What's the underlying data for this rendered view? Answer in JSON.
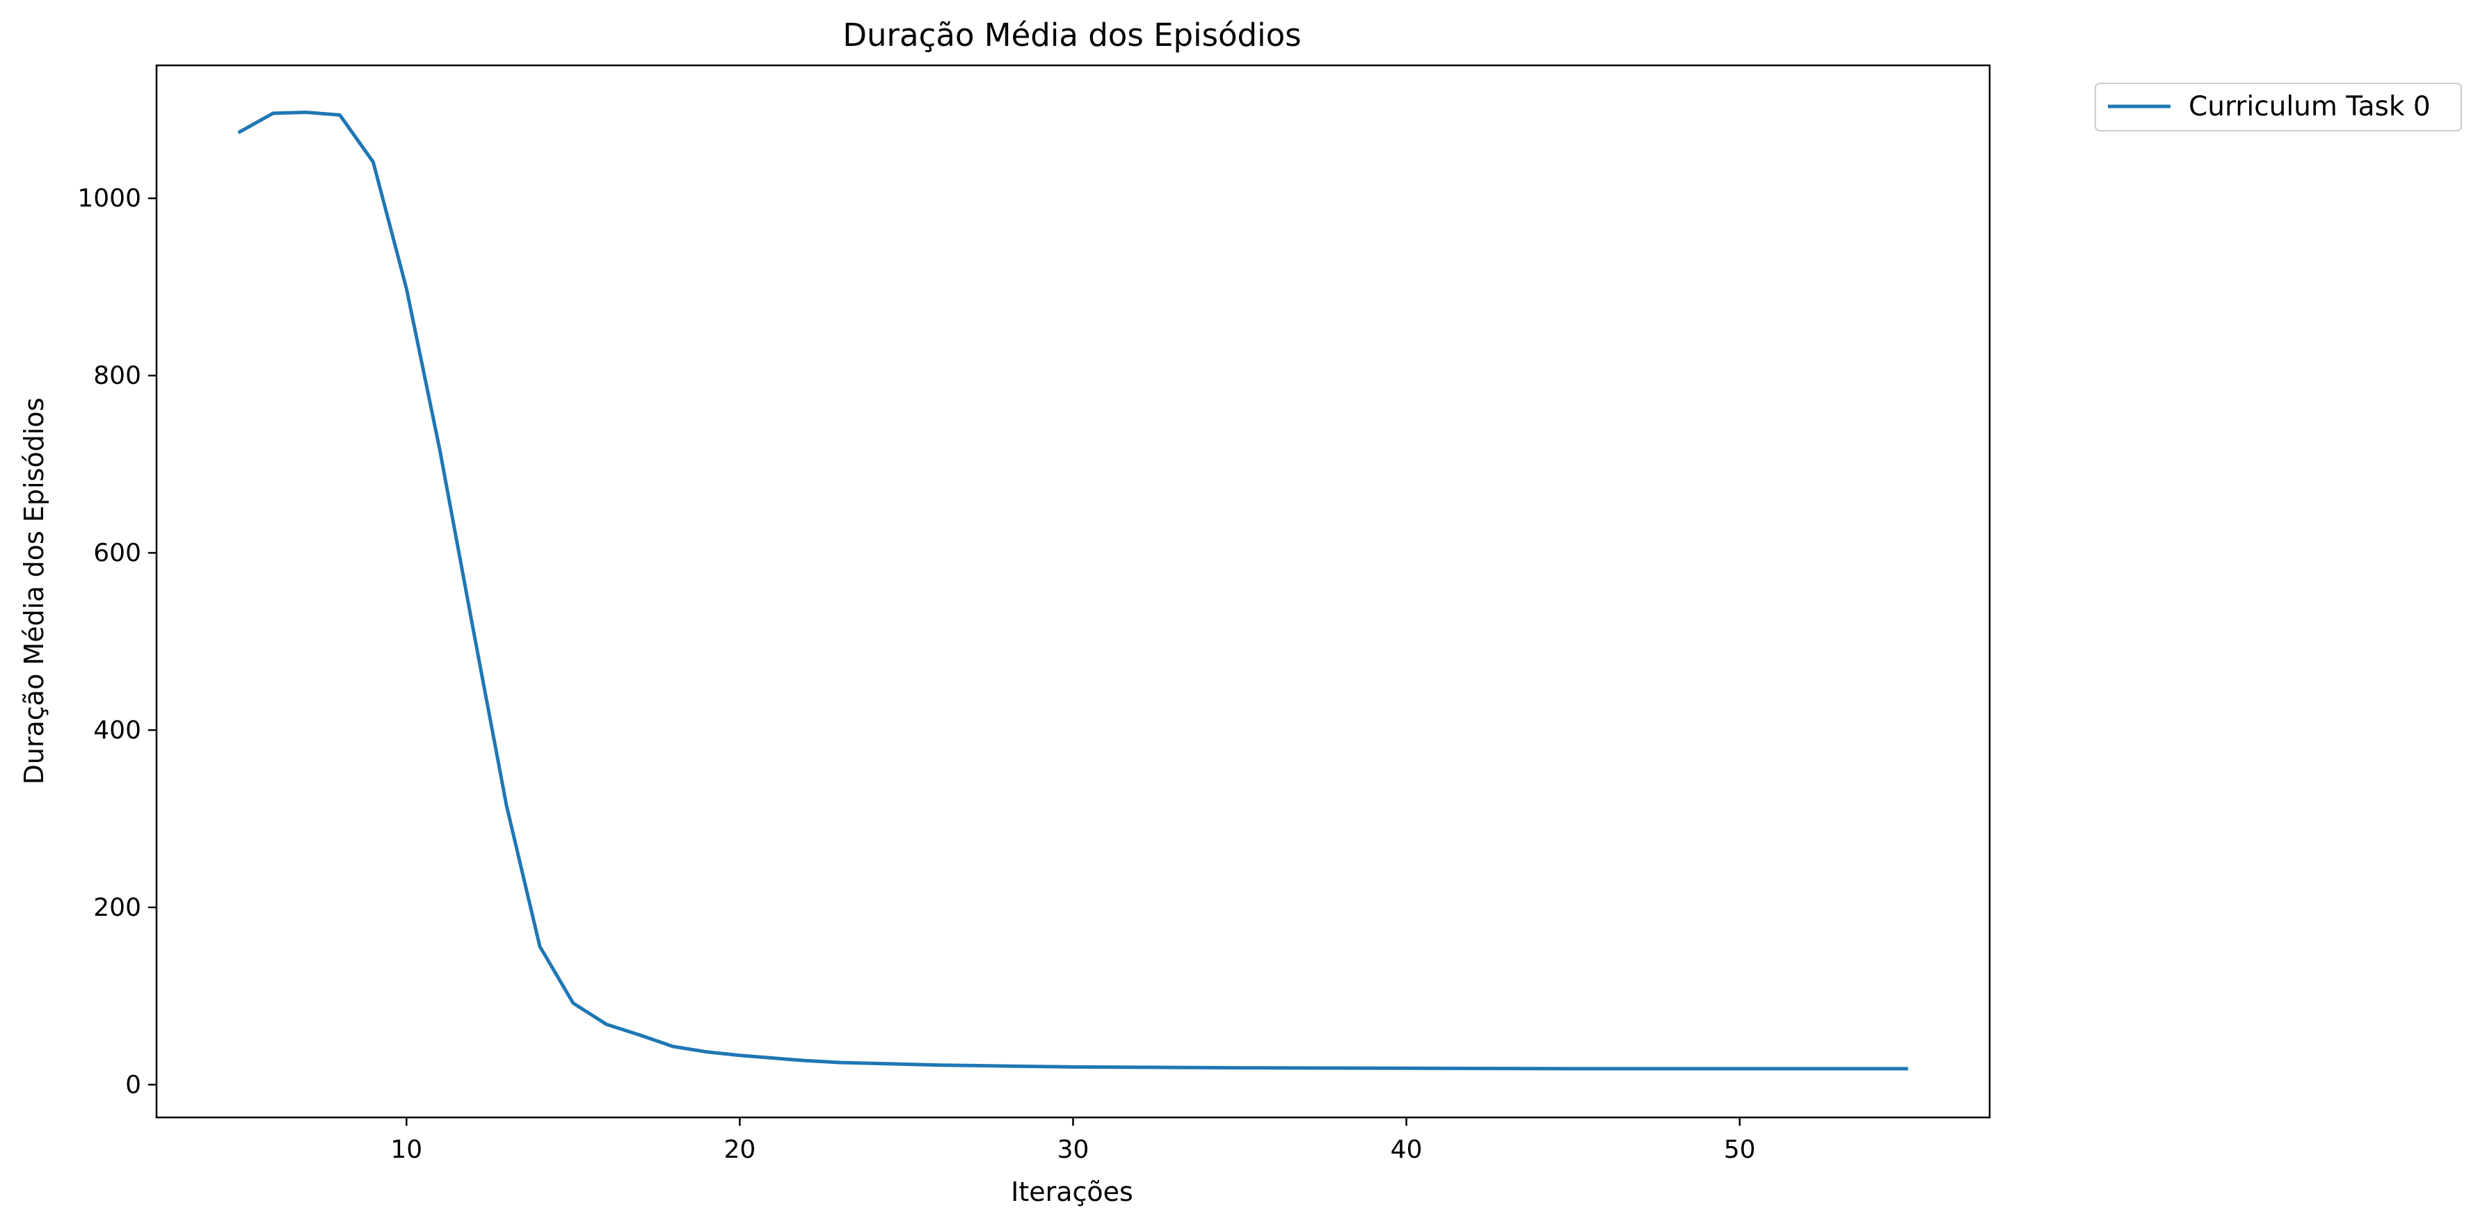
{
  "chart_data": {
    "type": "line",
    "title": "Duração Média dos Episódios",
    "xlabel": "Iterações",
    "ylabel": "Duração Média dos Episódios",
    "xlim": [
      2.5,
      57.5
    ],
    "ylim": [
      -37,
      1150
    ],
    "xticks": [
      10,
      20,
      30,
      40,
      50
    ],
    "yticks": [
      0,
      200,
      400,
      600,
      800,
      1000
    ],
    "grid": false,
    "legend_position": "outside-top-right",
    "series": [
      {
        "name": "Curriculum Task 0",
        "color": "#1f77b4",
        "x": [
          5,
          6,
          7,
          8,
          9,
          10,
          11,
          12,
          13,
          14,
          15,
          16,
          17,
          18,
          19,
          20,
          21,
          22,
          23,
          24,
          25,
          26,
          27,
          28,
          29,
          30,
          31,
          32,
          33,
          34,
          35,
          36,
          37,
          38,
          39,
          40,
          41,
          42,
          43,
          44,
          45,
          46,
          47,
          48,
          49,
          50,
          51,
          52,
          53,
          54,
          55
        ],
        "y": [
          1075,
          1096,
          1097,
          1094,
          1041,
          898,
          716,
          514,
          315,
          156,
          92,
          68,
          56,
          43,
          37,
          33,
          30,
          27,
          25,
          24,
          23,
          22,
          21.5,
          21,
          20.5,
          20,
          19.8,
          19.6,
          19.4,
          19.2,
          19,
          18.9,
          18.8,
          18.7,
          18.6,
          18.5,
          18.4,
          18.3,
          18.2,
          18.1,
          18,
          18,
          18,
          18,
          18,
          18,
          18,
          18,
          18,
          18,
          18
        ]
      }
    ]
  }
}
